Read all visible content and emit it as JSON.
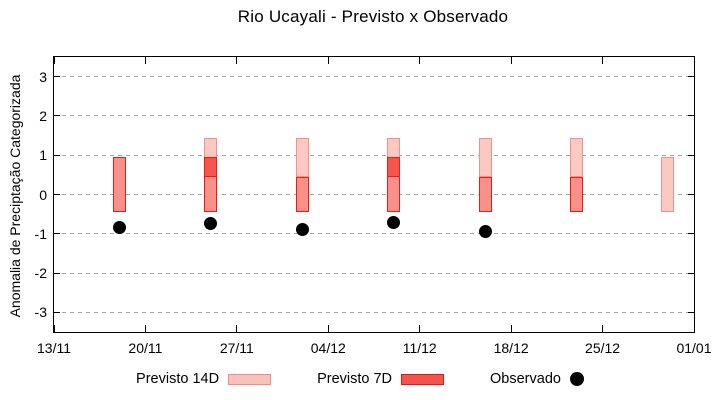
{
  "chart_data": {
    "type": "bar",
    "subtype": "range-bars-with-scatter-overlay",
    "title": "Rio Ucayali - Previsto x Observado",
    "xlabel": "",
    "ylabel": "Anomalia de Preciptação Categorizada",
    "x_tick_labels": [
      "13/11",
      "20/11",
      "27/11",
      "04/12",
      "11/12",
      "18/12",
      "25/12",
      "01/01"
    ],
    "x_tick_days": [
      0,
      7,
      14,
      21,
      28,
      35,
      42,
      49
    ],
    "x_range_days": [
      0,
      49
    ],
    "y_ticks": [
      3,
      2,
      1,
      0,
      -1,
      -2,
      -3
    ],
    "ylim": [
      -3.5,
      3.5
    ],
    "grid": "horizontal dashed gray lines at integer values",
    "legend_position": "below chart, horizontal",
    "series": [
      {
        "name": "Previsto 14D",
        "key": "p14",
        "type": "range-bar",
        "points": [
          {
            "date": "25/11",
            "day": 12,
            "low": 0.45,
            "high": 1.45
          },
          {
            "date": "02/12",
            "day": 19,
            "low": 0.45,
            "high": 1.45
          },
          {
            "date": "09/12",
            "day": 26,
            "low": 0.45,
            "high": 1.45
          },
          {
            "date": "16/12",
            "day": 33,
            "low": 0.45,
            "high": 1.45
          },
          {
            "date": "23/12",
            "day": 40,
            "low": 0.45,
            "high": 1.45
          },
          {
            "date": "30/12",
            "day": 47,
            "low": -0.45,
            "high": 0.95
          }
        ]
      },
      {
        "name": "Previsto 7D",
        "key": "p7",
        "type": "range-bar",
        "points": [
          {
            "date": "18/11",
            "day": 5,
            "low": -0.45,
            "high": 0.95
          },
          {
            "date": "25/11",
            "day": 12,
            "low": -0.45,
            "high": 0.95
          },
          {
            "date": "02/12",
            "day": 19,
            "low": -0.45,
            "high": 0.45
          },
          {
            "date": "09/12",
            "day": 26,
            "low": -0.45,
            "high": 0.95
          },
          {
            "date": "16/12",
            "day": 33,
            "low": -0.45,
            "high": 0.45
          },
          {
            "date": "23/12",
            "day": 40,
            "low": -0.45,
            "high": 0.45
          }
        ]
      },
      {
        "name": "Observado",
        "key": "obs",
        "type": "scatter",
        "points": [
          {
            "date": "18/11",
            "day": 5,
            "value": -0.85
          },
          {
            "date": "25/11",
            "day": 12,
            "value": -0.75
          },
          {
            "date": "02/12",
            "day": 19,
            "value": -0.9
          },
          {
            "date": "09/12",
            "day": 26,
            "value": -0.7
          },
          {
            "date": "16/12",
            "day": 33,
            "value": -0.95
          }
        ]
      }
    ],
    "colors": {
      "axis": "#000000",
      "grid": "#a3a3a3",
      "previsto_14d_fill": "#fbc9c1",
      "previsto_14d_border": "#f0928a",
      "previsto_7d_fill": "#f9918a",
      "previsto_7d_border": "#ec1c13",
      "overlap_fill": "#f4564f",
      "observado": "#000000",
      "legend_14d_fill": "#f8c2ba",
      "legend_14d_border": "#ef8e86",
      "legend_7d_fill": "#f1544c",
      "legend_7d_border": "#e51812"
    }
  }
}
